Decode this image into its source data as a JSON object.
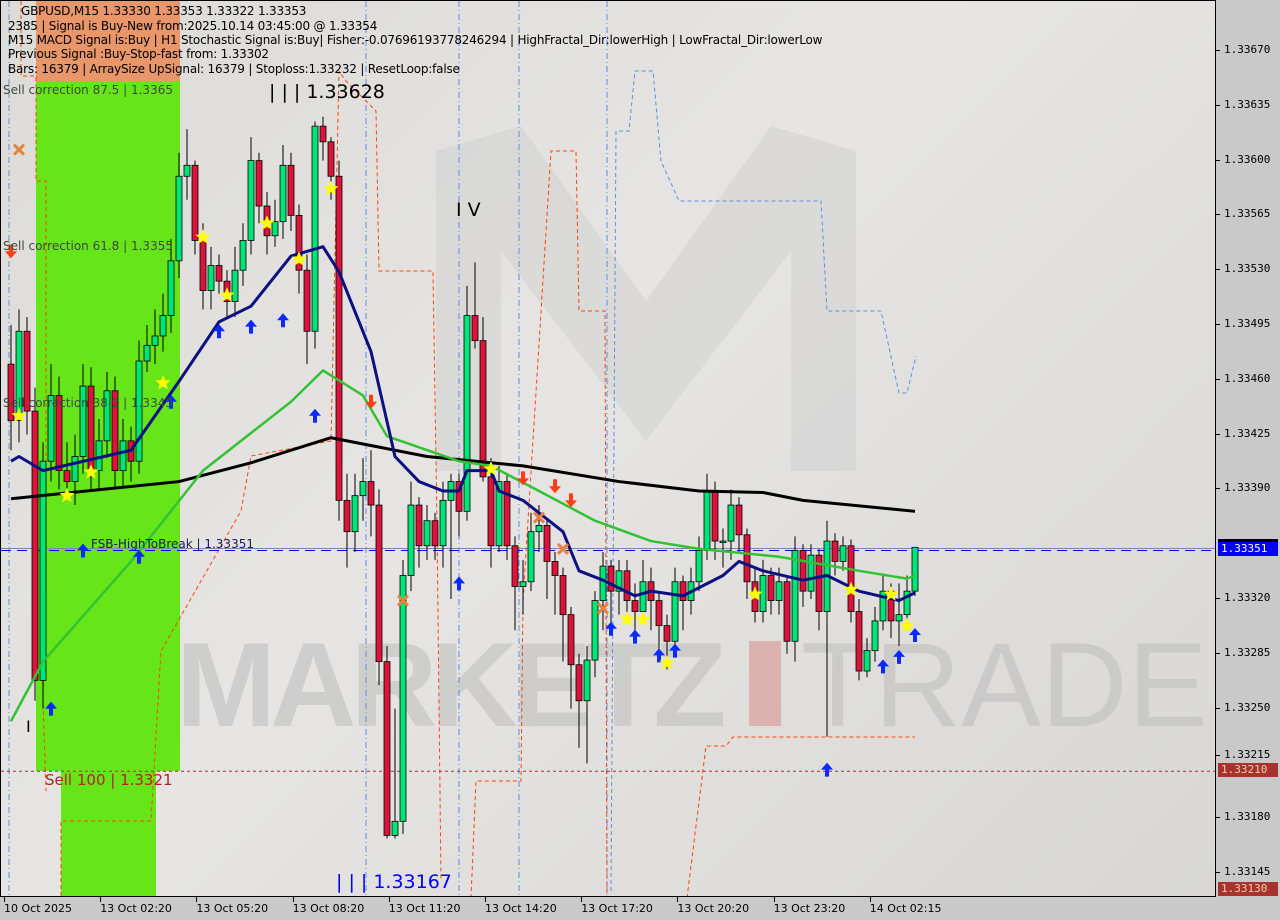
{
  "header": {
    "symbol_line": "GBPUSD,M15  1.33330 1.33353 1.33322 1.33353",
    "line2": "2385 | Signal is Buy-New from:2025.10.14 03:45:00 @ 1.33354",
    "line3": "M15 MACD Signal is:Buy | H1 Stochastic Signal is:Buy| Fisher:-0.07696193778246294 | HighFractal_Dir:lowerHigh | LowFractal_Dir:lowerLow",
    "line4": "Previous Signal :Buy-Stop-fast from: 1.33302",
    "line5": "Bars: 16379 | ArraySize UpSignal: 16379 | Stoploss:1.33232 | ResetLoop:false"
  },
  "annotations": {
    "high_label": "| | | 1.33628",
    "low_label": "| | | 1.33167",
    "wave_iv": "I V",
    "wave_i": "I",
    "sell_875": "Sell correction 87.5 | 1.3365",
    "sell_618": "Sell correction 61.8 | 1.3355",
    "sell_382": "Sell correction 38.2 | 1.3345",
    "fsb": "FSB-HighToBreak | 1.33351",
    "sell_100": "Sell 100 | 1.3321",
    "watermark_left": "MARKETZ",
    "watermark_i": "I",
    "watermark_right": "TRADE"
  },
  "colors": {
    "bull": "#00e676",
    "bear": "#dc143c",
    "ma_fast": "#0d1080",
    "ma_mid": "#33c233",
    "ma_slow": "#000000",
    "buy_zone": "#66e619",
    "sell_zone": "#e8966a",
    "current_price_tag": "#0000ff",
    "stop_tag": "#a8322d"
  },
  "price_axis": {
    "ticks": [
      "1.33670",
      "1.33635",
      "1.33600",
      "1.33565",
      "1.33530",
      "1.33495",
      "1.33460",
      "1.33425",
      "1.33390",
      "1.33320",
      "1.33285",
      "1.33250",
      "1.33215",
      "1.33180",
      "1.33145"
    ],
    "current_price": "1.33351",
    "sell100_price": "1.33210",
    "bottom_price": "1.33130"
  },
  "time_axis": {
    "labels": [
      "10 Oct 2025",
      "13 Oct 02:20",
      "13 Oct 05:20",
      "13 Oct 08:20",
      "13 Oct 11:20",
      "13 Oct 14:20",
      "13 Oct 17:20",
      "13 Oct 20:20",
      "13 Oct 23:20",
      "14 Oct 02:15"
    ]
  },
  "chart_data": {
    "type": "candlestick",
    "symbol": "GBPUSD",
    "timeframe": "M15",
    "ylim": [
      1.3313,
      1.337
    ],
    "candles_ohlc": [
      [
        1.3347,
        1.33495,
        1.33415,
        1.33434
      ],
      [
        1.33434,
        1.33505,
        1.3342,
        1.33491
      ],
      [
        1.33491,
        1.335,
        1.33425,
        1.3344
      ],
      [
        1.3344,
        1.33455,
        1.33255,
        1.33268
      ],
      [
        1.33268,
        1.3342,
        1.3325,
        1.33408
      ],
      [
        1.33408,
        1.3347,
        1.33395,
        1.3345
      ],
      [
        1.3345,
        1.33462,
        1.3339,
        1.33402
      ],
      [
        1.33402,
        1.3342,
        1.33385,
        1.33395
      ],
      [
        1.33395,
        1.33425,
        1.3338,
        1.33411
      ],
      [
        1.33411,
        1.3347,
        1.334,
        1.33456
      ],
      [
        1.33456,
        1.33468,
        1.3339,
        1.33402
      ],
      [
        1.33402,
        1.33435,
        1.3339,
        1.33421
      ],
      [
        1.33421,
        1.33465,
        1.3341,
        1.33453
      ],
      [
        1.33453,
        1.33462,
        1.3339,
        1.33402
      ],
      [
        1.33402,
        1.33435,
        1.33392,
        1.33421
      ],
      [
        1.33421,
        1.3343,
        1.33395,
        1.33408
      ],
      [
        1.33408,
        1.33485,
        1.334,
        1.33472
      ],
      [
        1.33472,
        1.33495,
        1.33465,
        1.33482
      ],
      [
        1.33482,
        1.33505,
        1.3347,
        1.33488
      ],
      [
        1.33488,
        1.33515,
        1.33478,
        1.33501
      ],
      [
        1.33501,
        1.3355,
        1.3349,
        1.33536
      ],
      [
        1.33536,
        1.33605,
        1.33525,
        1.3359
      ],
      [
        1.3359,
        1.3362,
        1.33575,
        1.33597
      ],
      [
        1.33597,
        1.336,
        1.3354,
        1.33549
      ],
      [
        1.33549,
        1.3356,
        1.33505,
        1.33517
      ],
      [
        1.33517,
        1.33545,
        1.33505,
        1.33533
      ],
      [
        1.33533,
        1.3354,
        1.33515,
        1.33523
      ],
      [
        1.33523,
        1.3353,
        1.335,
        1.3351
      ],
      [
        1.3351,
        1.33545,
        1.335,
        1.3353
      ],
      [
        1.3353,
        1.3356,
        1.3352,
        1.33549
      ],
      [
        1.33549,
        1.33615,
        1.3354,
        1.336
      ],
      [
        1.336,
        1.33605,
        1.3356,
        1.33571
      ],
      [
        1.33571,
        1.3358,
        1.3354,
        1.33552
      ],
      [
        1.33552,
        1.33575,
        1.33545,
        1.33561
      ],
      [
        1.33561,
        1.3361,
        1.3355,
        1.33597
      ],
      [
        1.33597,
        1.33605,
        1.33555,
        1.33565
      ],
      [
        1.33565,
        1.33572,
        1.33515,
        1.3353
      ],
      [
        1.3353,
        1.3354,
        1.3347,
        1.33491
      ],
      [
        1.33491,
        1.33625,
        1.3348,
        1.33622
      ],
      [
        1.33622,
        1.33628,
        1.336,
        1.33612
      ],
      [
        1.33612,
        1.33615,
        1.33575,
        1.3359
      ],
      [
        1.3359,
        1.336,
        1.3337,
        1.33383
      ],
      [
        1.33383,
        1.334,
        1.3334,
        1.33363
      ],
      [
        1.33363,
        1.334,
        1.3335,
        1.33386
      ],
      [
        1.33386,
        1.3341,
        1.3337,
        1.33395
      ],
      [
        1.33395,
        1.33415,
        1.3336,
        1.3338
      ],
      [
        1.3338,
        1.3339,
        1.33265,
        1.3328
      ],
      [
        1.3328,
        1.3329,
        1.33167,
        1.33169
      ],
      [
        1.33169,
        1.3325,
        1.33167,
        1.33178
      ],
      [
        1.33178,
        1.33345,
        1.3317,
        1.33335
      ],
      [
        1.33335,
        1.33395,
        1.33325,
        1.3338
      ],
      [
        1.3338,
        1.33385,
        1.3334,
        1.33354
      ],
      [
        1.33354,
        1.3338,
        1.33345,
        1.3337
      ],
      [
        1.3337,
        1.33375,
        1.33345,
        1.33354
      ],
      [
        1.33354,
        1.33395,
        1.3334,
        1.33383
      ],
      [
        1.33383,
        1.334,
        1.3332,
        1.33395
      ],
      [
        1.33395,
        1.334,
        1.3336,
        1.33376
      ],
      [
        1.33376,
        1.3352,
        1.3337,
        1.33501
      ],
      [
        1.33501,
        1.33535,
        1.3348,
        1.33485
      ],
      [
        1.33485,
        1.335,
        1.33395,
        1.33398
      ],
      [
        1.33398,
        1.3341,
        1.3334,
        1.33354
      ],
      [
        1.33354,
        1.33405,
        1.3335,
        1.33395
      ],
      [
        1.33395,
        1.334,
        1.33345,
        1.33354
      ],
      [
        1.33354,
        1.3336,
        1.333,
        1.33328
      ],
      [
        1.33328,
        1.33345,
        1.3331,
        1.33331
      ],
      [
        1.33331,
        1.33375,
        1.33325,
        1.33363
      ],
      [
        1.33363,
        1.3338,
        1.3335,
        1.33367
      ],
      [
        1.33367,
        1.33372,
        1.3332,
        1.33344
      ],
      [
        1.33344,
        1.3335,
        1.3331,
        1.33335
      ],
      [
        1.33335,
        1.3334,
        1.3328,
        1.3331
      ],
      [
        1.3331,
        1.33315,
        1.3325,
        1.33278
      ],
      [
        1.33278,
        1.33285,
        1.33225,
        1.33255
      ],
      [
        1.33255,
        1.3329,
        1.33215,
        1.33281
      ],
      [
        1.33281,
        1.33325,
        1.3327,
        1.33319
      ],
      [
        1.33319,
        1.3335,
        1.333,
        1.33341
      ],
      [
        1.33341,
        1.33345,
        1.333,
        1.33325
      ],
      [
        1.33325,
        1.33345,
        1.3331,
        1.33338
      ],
      [
        1.33338,
        1.33345,
        1.33305,
        1.33319
      ],
      [
        1.33319,
        1.3333,
        1.33295,
        1.33312
      ],
      [
        1.33312,
        1.33345,
        1.33305,
        1.33331
      ],
      [
        1.33331,
        1.3334,
        1.333,
        1.33319
      ],
      [
        1.33319,
        1.33325,
        1.3328,
        1.33303
      ],
      [
        1.33303,
        1.3331,
        1.33275,
        1.33293
      ],
      [
        1.33293,
        1.3334,
        1.33285,
        1.33331
      ],
      [
        1.33331,
        1.33335,
        1.333,
        1.33319
      ],
      [
        1.33319,
        1.3334,
        1.3331,
        1.33331
      ],
      [
        1.33331,
        1.3336,
        1.33325,
        1.33351
      ],
      [
        1.33351,
        1.334,
        1.33345,
        1.33389
      ],
      [
        1.33389,
        1.33395,
        1.33345,
        1.33357
      ],
      [
        1.33357,
        1.33365,
        1.3334,
        1.33357
      ],
      [
        1.33357,
        1.3339,
        1.33345,
        1.3338
      ],
      [
        1.3338,
        1.33385,
        1.3335,
        1.33361
      ],
      [
        1.33361,
        1.33365,
        1.3332,
        1.33331
      ],
      [
        1.33331,
        1.3334,
        1.33305,
        1.33312
      ],
      [
        1.33312,
        1.33345,
        1.33305,
        1.33335
      ],
      [
        1.33335,
        1.3334,
        1.3331,
        1.33319
      ],
      [
        1.33319,
        1.3334,
        1.3331,
        1.33331
      ],
      [
        1.33331,
        1.33335,
        1.33285,
        1.33293
      ],
      [
        1.33293,
        1.3336,
        1.3328,
        1.33351
      ],
      [
        1.33351,
        1.33355,
        1.33315,
        1.33325
      ],
      [
        1.33325,
        1.33355,
        1.3332,
        1.33348
      ],
      [
        1.33348,
        1.33352,
        1.333,
        1.33312
      ],
      [
        1.33312,
        1.3337,
        1.33232,
        1.33357
      ],
      [
        1.33357,
        1.33362,
        1.33335,
        1.33344
      ],
      [
        1.33344,
        1.3336,
        1.33338,
        1.33354
      ],
      [
        1.33354,
        1.33358,
        1.33305,
        1.33312
      ],
      [
        1.33312,
        1.3332,
        1.33268,
        1.33274
      ],
      [
        1.33274,
        1.33295,
        1.3327,
        1.33287
      ],
      [
        1.33287,
        1.33315,
        1.3328,
        1.33306
      ],
      [
        1.33306,
        1.33335,
        1.333,
        1.33325
      ],
      [
        1.33325,
        1.3333,
        1.33295,
        1.33306
      ],
      [
        1.33306,
        1.3333,
        1.3329,
        1.3331
      ],
      [
        1.3331,
        1.33335,
        1.33305,
        1.33325
      ],
      [
        1.33325,
        1.33353,
        1.33322,
        1.33353
      ]
    ],
    "ma_slow_points": [
      [
        0,
        1.33384
      ],
      [
        21,
        1.33395
      ],
      [
        30,
        1.33407
      ],
      [
        40,
        1.33423
      ],
      [
        52,
        1.33411
      ],
      [
        64,
        1.33405
      ],
      [
        76,
        1.33395
      ],
      [
        86,
        1.33389
      ],
      [
        94,
        1.33388
      ],
      [
        99,
        1.33383
      ],
      [
        113,
        1.33376
      ]
    ],
    "ma_mid_points": [
      [
        0,
        1.33242
      ],
      [
        4,
        1.3328
      ],
      [
        15,
        1.33344
      ],
      [
        24,
        1.33402
      ],
      [
        35,
        1.33446
      ],
      [
        39,
        1.33466
      ],
      [
        44,
        1.3345
      ],
      [
        47,
        1.33424
      ],
      [
        56,
        1.33408
      ],
      [
        60,
        1.33405
      ],
      [
        66,
        1.33389
      ],
      [
        73,
        1.3337
      ],
      [
        80,
        1.33357
      ],
      [
        86,
        1.33352
      ],
      [
        96,
        1.33347
      ],
      [
        106,
        1.33338
      ],
      [
        112,
        1.33333
      ],
      [
        113,
        1.33335
      ]
    ],
    "ma_fast_points": [
      [
        0,
        1.33408
      ],
      [
        1,
        1.33411
      ],
      [
        4,
        1.33402
      ],
      [
        15,
        1.33415
      ],
      [
        21,
        1.33459
      ],
      [
        26,
        1.33497
      ],
      [
        30,
        1.33507
      ],
      [
        35,
        1.33539
      ],
      [
        39,
        1.33545
      ],
      [
        41,
        1.33529
      ],
      [
        45,
        1.33478
      ],
      [
        48,
        1.33411
      ],
      [
        51,
        1.33395
      ],
      [
        54,
        1.33389
      ],
      [
        56,
        1.33389
      ],
      [
        57,
        1.33402
      ],
      [
        60,
        1.33402
      ],
      [
        61,
        1.33389
      ],
      [
        64,
        1.33383
      ],
      [
        69,
        1.33363
      ],
      [
        71,
        1.33338
      ],
      [
        74,
        1.33332
      ],
      [
        78,
        1.33322
      ],
      [
        80,
        1.33325
      ],
      [
        84,
        1.33322
      ],
      [
        89,
        1.33335
      ],
      [
        91,
        1.33344
      ],
      [
        94,
        1.33338
      ],
      [
        99,
        1.33332
      ],
      [
        102,
        1.33335
      ],
      [
        106,
        1.33325
      ],
      [
        111,
        1.33319
      ],
      [
        113,
        1.33324
      ]
    ],
    "buy_arrows": [
      [
        5,
        1.3325
      ],
      [
        9,
        1.33351
      ],
      [
        16,
        1.33347
      ],
      [
        20,
        1.33446
      ],
      [
        26,
        1.33491
      ],
      [
        30,
        1.33494
      ],
      [
        34,
        1.33498
      ],
      [
        38,
        1.33437
      ],
      [
        56,
        1.3333
      ],
      [
        75,
        1.33301
      ],
      [
        78,
        1.33296
      ],
      [
        81,
        1.33284
      ],
      [
        83,
        1.33287
      ],
      [
        102,
        1.33211
      ],
      [
        109,
        1.33277
      ],
      [
        111,
        1.33283
      ],
      [
        113,
        1.33297
      ]
    ],
    "stars": [
      [
        1,
        1.33437
      ],
      [
        7,
        1.33386
      ],
      [
        10,
        1.33401
      ],
      [
        19,
        1.33458
      ],
      [
        24,
        1.33551
      ],
      [
        27,
        1.33514
      ],
      [
        32,
        1.3356
      ],
      [
        36,
        1.33537
      ],
      [
        40,
        1.33582
      ],
      [
        60,
        1.33403
      ],
      [
        77,
        1.33307
      ],
      [
        79,
        1.33307
      ],
      [
        82,
        1.33279
      ],
      [
        93,
        1.33323
      ],
      [
        105,
        1.33326
      ],
      [
        110,
        1.33323
      ],
      [
        112,
        1.33303
      ]
    ],
    "sell_arrows": [
      [
        0,
        1.33542
      ],
      [
        45,
        1.33446
      ],
      [
        64,
        1.33397
      ],
      [
        68,
        1.33392
      ],
      [
        70,
        1.33383
      ]
    ],
    "crosses": [
      [
        1,
        1.33607
      ],
      [
        49,
        1.33319
      ],
      [
        66,
        1.33372
      ],
      [
        69,
        1.33352
      ],
      [
        74,
        1.33314
      ]
    ]
  }
}
